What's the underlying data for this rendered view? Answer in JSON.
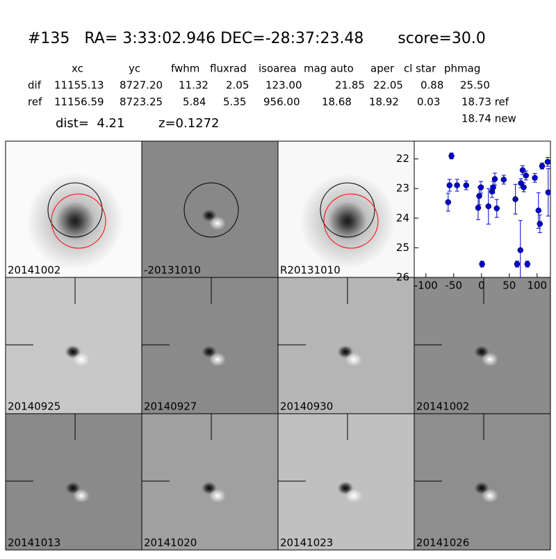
{
  "header": {
    "title": "#135   RA= 3:33:02.946 DEC=-28:37:23.48       score=30.0"
  },
  "table": {
    "columns": [
      "xc",
      "yc",
      "fwhm",
      "fluxrad",
      "isoarea",
      "mag auto",
      "aper",
      "cl star",
      "phmag"
    ],
    "rows": [
      [
        "dif",
        "11155.13",
        "8727.20",
        "11.32",
        "2.05",
        "123.00",
        "21.85",
        "22.05",
        "0.88",
        "25.50"
      ],
      [
        "ref",
        "11156.59",
        "8723.25",
        "5.84",
        "5.35",
        "956.00",
        "18.68",
        "18.92",
        "0.03",
        "18.73 ref"
      ]
    ],
    "extra": "18.74 new",
    "dist": "dist=  4.21",
    "z": "z=0.1272"
  },
  "panels": [
    {
      "label": "20141002"
    },
    {
      "label": "-20131010"
    },
    {
      "label": "R20131010"
    },
    {
      "label": "20140925"
    },
    {
      "label": "20140927"
    },
    {
      "label": "20140930"
    },
    {
      "label": "20141002",
      "color": "#ff0000"
    },
    {
      "label": "20141013"
    },
    {
      "label": "20141020"
    },
    {
      "label": "20141023"
    },
    {
      "label": "20141026"
    }
  ],
  "chart_data": {
    "type": "scatter",
    "color": "#0000cc",
    "inverted": true,
    "x": [
      -60,
      -57.5,
      -54,
      -44,
      -27.5,
      -6,
      -4,
      -1,
      1,
      12.5,
      19,
      21,
      24,
      27.5,
      40,
      61,
      64,
      70,
      71,
      74,
      76,
      80,
      82.5,
      96,
      102.5,
      105,
      109,
      119,
      120
    ],
    "values": [
      23.46,
      22.89,
      21.9,
      22.89,
      22.89,
      23.65,
      23.25,
      22.96,
      25.55,
      23.6,
      23.1,
      22.96,
      22.68,
      23.67,
      22.7,
      23.36,
      25.55,
      25.08,
      22.82,
      22.38,
      22.96,
      22.56,
      25.55,
      22.64,
      23.74,
      24.19,
      22.24,
      22.1,
      23.13
    ],
    "errors": [
      0.3,
      0.2,
      0.1,
      0.2,
      0.15,
      0.4,
      0.3,
      0.2,
      0.1,
      0.6,
      0.2,
      0.2,
      0.2,
      0.3,
      0.15,
      0.5,
      0.1,
      1.0,
      0.15,
      0.15,
      0.15,
      0.15,
      0.1,
      0.15,
      0.6,
      0.3,
      0.1,
      0.15,
      0.8
    ],
    "xlim": [
      -121,
      124
    ],
    "ylim": [
      21.4,
      26
    ],
    "xticks": [
      -100,
      -50,
      0,
      50,
      100
    ],
    "yticks": [
      22,
      23,
      24,
      25,
      26
    ]
  }
}
